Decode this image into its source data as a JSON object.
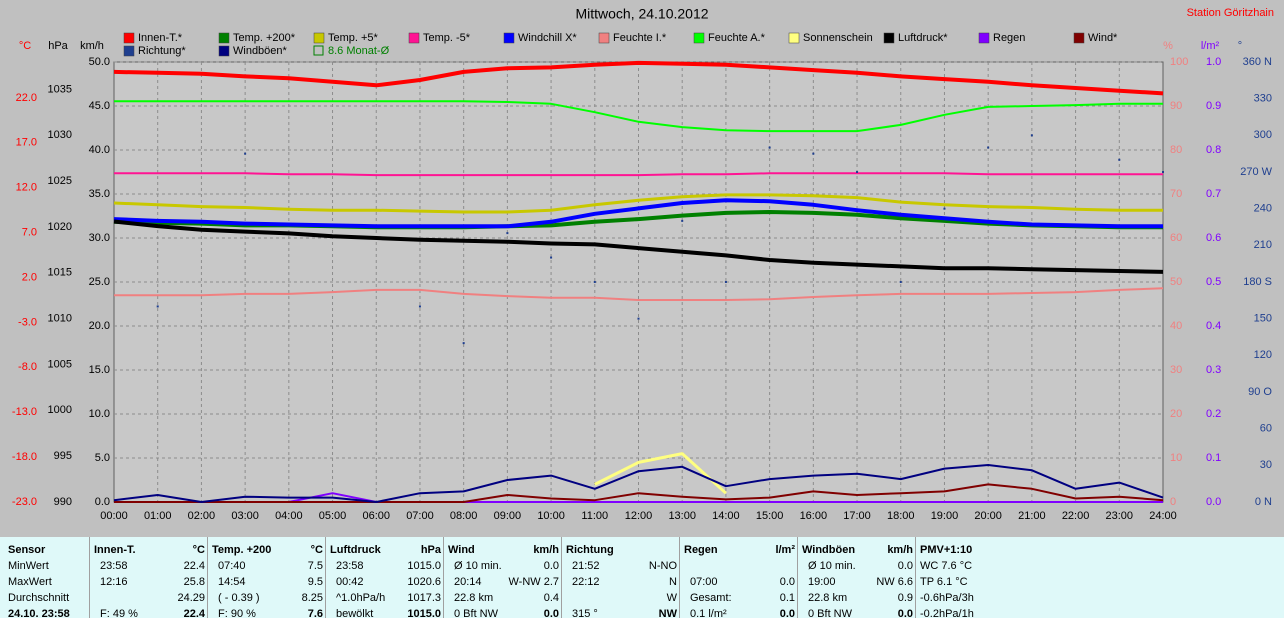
{
  "header": {
    "title": "Mittwoch, 24.10.2012",
    "station": "Station Göritzhain"
  },
  "chart_data": {
    "type": "line",
    "grid": true,
    "categories": [
      "00:00",
      "01:00",
      "02:00",
      "03:00",
      "04:00",
      "05:00",
      "06:00",
      "07:00",
      "08:00",
      "09:00",
      "10:00",
      "11:00",
      "12:00",
      "13:00",
      "14:00",
      "15:00",
      "16:00",
      "17:00",
      "18:00",
      "19:00",
      "20:00",
      "21:00",
      "22:00",
      "23:00",
      "24:00"
    ],
    "axes": [
      {
        "label": "°C",
        "color": "#ff0000",
        "lim": [
          -23,
          26
        ],
        "ticks": [
          {
            "value": 22,
            "label": "22.0"
          },
          {
            "value": 17,
            "label": "17.0"
          },
          {
            "value": 12,
            "label": "12.0"
          },
          {
            "value": 7,
            "label": "7.0"
          },
          {
            "value": 2,
            "label": "2.0"
          },
          {
            "value": -3,
            "label": "-3.0"
          },
          {
            "value": -8,
            "label": "-8.0"
          },
          {
            "value": -13,
            "label": "-13.0"
          },
          {
            "value": -18,
            "label": "-18.0"
          },
          {
            "value": -23,
            "label": "-23.0"
          }
        ]
      },
      {
        "label": "hPa",
        "color": "#000000",
        "lim": [
          990,
          1038
        ],
        "ticks": [
          990,
          995,
          1000,
          1005,
          1010,
          1015,
          1020,
          1025,
          1030,
          1035
        ]
      },
      {
        "label": "km/h",
        "color": "#000000",
        "lim": [
          0,
          50
        ],
        "ticks": [
          {
            "value": 0,
            "label": "0.0"
          },
          {
            "value": 5,
            "label": "5.0"
          },
          {
            "value": 10,
            "label": "10.0"
          },
          {
            "value": 15,
            "label": "15.0"
          },
          {
            "value": 20,
            "label": "20.0"
          },
          {
            "value": 25,
            "label": "25.0"
          },
          {
            "value": 30,
            "label": "30.0"
          },
          {
            "value": 35,
            "label": "35.0"
          },
          {
            "value": 40,
            "label": "40.0"
          },
          {
            "value": 45,
            "label": "45.0"
          },
          {
            "value": 50,
            "label": "50.0"
          }
        ]
      },
      {
        "label": "%",
        "color": "#f08080",
        "lim": [
          0,
          100
        ],
        "ticks": [
          0,
          10,
          20,
          30,
          40,
          50,
          60,
          70,
          80,
          90,
          100
        ]
      },
      {
        "label": "l/m²",
        "color": "#8000ff",
        "lim": [
          0,
          1
        ],
        "ticks": [
          {
            "value": 0,
            "label": "0.0"
          },
          0.1,
          0.2,
          0.3,
          0.4,
          0.5,
          0.6,
          0.7,
          0.8,
          0.9,
          {
            "value": 1,
            "label": "1.0"
          }
        ]
      },
      {
        "label": "°",
        "color": "#1f3f8f",
        "lim": [
          0,
          360
        ],
        "ticks": [
          {
            "value": 0,
            "label": "0 N"
          },
          30,
          60,
          {
            "value": 90,
            "label": "90 O"
          },
          120,
          150,
          {
            "value": 180,
            "label": "180 S"
          },
          210,
          240,
          {
            "value": 270,
            "label": "270 W"
          },
          300,
          330,
          {
            "value": 360,
            "label": "360 N"
          }
        ]
      }
    ],
    "series": [
      {
        "name": "Innen-T.*",
        "color": "#ff0000",
        "axis": 0,
        "style": "line",
        "width": 4,
        "values": [
          24.9,
          24.8,
          24.7,
          24.4,
          24.2,
          23.8,
          23.4,
          24.0,
          24.9,
          25.3,
          25.4,
          25.7,
          25.9,
          25.8,
          25.7,
          25.4,
          25.1,
          24.8,
          24.4,
          24.1,
          23.8,
          23.4,
          23.1,
          22.8,
          22.5
        ]
      },
      {
        "name": "Temp. +200*",
        "color": "#008000",
        "axis": 0,
        "style": "line",
        "width": 4,
        "values": [
          8.2,
          8.1,
          8.0,
          7.8,
          7.8,
          7.7,
          7.6,
          7.6,
          7.6,
          7.7,
          7.8,
          8.2,
          8.5,
          8.9,
          9.2,
          9.3,
          9.2,
          9.0,
          8.6,
          8.3,
          8.0,
          7.8,
          7.7,
          7.6,
          7.6
        ]
      },
      {
        "name": "Temp. +5*",
        "color": "#c8c800",
        "axis": 0,
        "style": "line",
        "width": 3,
        "values": [
          10.3,
          10.1,
          9.9,
          9.8,
          9.6,
          9.5,
          9.5,
          9.4,
          9.3,
          9.3,
          9.5,
          10.1,
          10.6,
          11.0,
          11.2,
          11.2,
          11.1,
          10.9,
          10.4,
          10.1,
          9.9,
          9.8,
          9.6,
          9.5,
          9.5
        ]
      },
      {
        "name": "Temp. -5*",
        "color": "#ff1493",
        "axis": 0,
        "style": "line",
        "width": 2,
        "values": [
          13.6,
          13.6,
          13.6,
          13.6,
          13.5,
          13.5,
          13.4,
          13.4,
          13.4,
          13.4,
          13.4,
          13.4,
          13.4,
          13.5,
          13.5,
          13.6,
          13.6,
          13.6,
          13.6,
          13.6,
          13.5,
          13.5,
          13.5,
          13.5,
          13.5
        ]
      },
      {
        "name": "Windchill X*",
        "color": "#0000ff",
        "axis": 0,
        "style": "line",
        "width": 4,
        "values": [
          8.5,
          8.3,
          8.2,
          8.0,
          7.9,
          7.8,
          7.7,
          7.7,
          7.7,
          7.7,
          8.2,
          9.1,
          9.7,
          10.3,
          10.6,
          10.5,
          10.1,
          9.5,
          9.0,
          8.6,
          8.2,
          7.9,
          7.8,
          7.7,
          7.7
        ]
      },
      {
        "name": "Feuchte I.*",
        "color": "#f08080",
        "axis": 3,
        "style": "line",
        "width": 2,
        "values": [
          47.0,
          47.0,
          47.0,
          47.3,
          47.3,
          47.7,
          48.2,
          48.2,
          47.3,
          46.8,
          46.4,
          46.4,
          45.9,
          45.9,
          45.9,
          46.1,
          46.6,
          47.0,
          47.3,
          47.3,
          47.3,
          47.5,
          47.7,
          48.2,
          48.6
        ]
      },
      {
        "name": "Feuchte A.*",
        "color": "#00ff00",
        "axis": 3,
        "style": "line",
        "width": 2,
        "values": [
          91.1,
          91.1,
          91.1,
          91.1,
          91.1,
          91.1,
          91.1,
          91.1,
          91.1,
          90.9,
          90.5,
          88.6,
          86.4,
          85.2,
          84.5,
          84.3,
          84.3,
          84.3,
          85.7,
          88.0,
          89.8,
          90.0,
          90.2,
          90.5,
          90.5
        ]
      },
      {
        "name": "Sonnenschein",
        "color": "#ffff80",
        "axis": 2,
        "style": "line",
        "width": 3,
        "values": [
          null,
          null,
          null,
          null,
          null,
          null,
          null,
          null,
          null,
          null,
          null,
          2,
          4.5,
          5.5,
          1,
          null,
          null,
          null,
          null,
          null,
          null,
          null,
          null,
          null,
          null
        ]
      },
      {
        "name": "Luftdruck*",
        "color": "#000000",
        "axis": 1,
        "style": "line",
        "width": 4,
        "values": [
          1020.6,
          1020.1,
          1019.7,
          1019.5,
          1019.3,
          1019.0,
          1018.8,
          1018.6,
          1018.5,
          1018.4,
          1018.2,
          1018.1,
          1017.7,
          1017.3,
          1016.9,
          1016.4,
          1016.1,
          1015.9,
          1015.7,
          1015.5,
          1015.5,
          1015.4,
          1015.3,
          1015.2,
          1015.1
        ]
      },
      {
        "name": "Regen",
        "color": "#8000ff",
        "axis": 4,
        "style": "line",
        "width": 2,
        "values": [
          0,
          0,
          0,
          0,
          0,
          0.02,
          0,
          0,
          0,
          0,
          0,
          0,
          0,
          0,
          0,
          0,
          0,
          0,
          0,
          0,
          0,
          0,
          0,
          0,
          0
        ]
      },
      {
        "name": "Wind*",
        "color": "#800000",
        "axis": 2,
        "style": "line",
        "width": 2,
        "values": [
          0,
          0,
          0,
          0,
          0,
          0,
          0,
          0,
          0,
          0.8,
          0.4,
          0.2,
          1.0,
          0.6,
          0.3,
          0.5,
          1.2,
          0.8,
          1.0,
          1.2,
          2.0,
          1.5,
          0.4,
          0.6,
          0.2
        ]
      },
      {
        "name": "Richtung*",
        "color": "#1f3f8f",
        "axis": 5,
        "style": "dots",
        "width": 2,
        "values": [
          null,
          160,
          null,
          285,
          null,
          null,
          null,
          160,
          130,
          220,
          200,
          180,
          150,
          230,
          180,
          290,
          285,
          270,
          180,
          240,
          290,
          300,
          null,
          280,
          270
        ]
      },
      {
        "name": "Windböen*",
        "color": "#000080",
        "axis": 2,
        "style": "line",
        "width": 2,
        "values": [
          0.2,
          0.8,
          0,
          0.6,
          0.5,
          0.5,
          0,
          1.0,
          1.2,
          2.5,
          3.0,
          1.5,
          3.5,
          4.0,
          1.8,
          2.6,
          3.0,
          3.2,
          2.6,
          3.8,
          4.2,
          3.6,
          1.5,
          2.2,
          0.5
        ]
      }
    ],
    "legend_extra": {
      "label": "8.6 Monat-Ø",
      "color": "#008000"
    }
  },
  "table": {
    "sensor": [
      "Sensor",
      "MinWert",
      "MaxWert",
      "Durchschnitt",
      "24.10. 23:58"
    ],
    "columns": [
      {
        "name": "Innen-T.",
        "unit": "°C",
        "rows": [
          [
            "23:58",
            "22.4"
          ],
          [
            "12:16",
            "25.8"
          ],
          [
            null,
            "24.29"
          ],
          [
            "F: 49 %",
            "22.4"
          ]
        ]
      },
      {
        "name": "Temp. +200",
        "unit": "°C",
        "rows": [
          [
            "07:40",
            "7.5"
          ],
          [
            "14:54",
            "9.5"
          ],
          [
            "( - 0.39 )",
            "8.25"
          ],
          [
            "F: 90 %",
            "7.6"
          ]
        ]
      },
      {
        "name": "Luftdruck",
        "unit": "hPa",
        "rows": [
          [
            "23:58",
            "1015.0"
          ],
          [
            "00:42",
            "1020.6"
          ],
          [
            "^1.0hPa/h",
            "1017.3"
          ],
          [
            "bewölkt",
            "1015.0"
          ]
        ]
      },
      {
        "name": "Wind",
        "unit": "km/h",
        "rows": [
          [
            "Ø 10 min.",
            "0.0"
          ],
          [
            "20:14",
            "W-NW 2.7"
          ],
          [
            "22.8 km",
            "0.4"
          ],
          [
            "0 Bft NW",
            "0.0"
          ]
        ]
      },
      {
        "name": "Richtung",
        "unit": null,
        "rows": [
          [
            "21:52",
            "N-NO"
          ],
          [
            "22:12",
            "N"
          ],
          [
            null,
            "W"
          ],
          [
            "315 °",
            "NW"
          ]
        ]
      },
      {
        "name": "Regen",
        "unit": "l/m²",
        "rows": [
          [
            null,
            null
          ],
          [
            "07:00",
            "0.0"
          ],
          [
            "Gesamt:",
            "0.1"
          ],
          [
            "0.1 l/m²",
            "0.0"
          ]
        ]
      },
      {
        "name": "Windböen",
        "unit": "km/h",
        "rows": [
          [
            "Ø 10 min.",
            "0.0"
          ],
          [
            "19:00",
            "NW 6.6"
          ],
          [
            "22.8 km",
            "0.9"
          ],
          [
            "0 Bft NW",
            "0.0"
          ]
        ]
      },
      {
        "name": "PMV+1:10",
        "unit": null,
        "rows": [
          [
            "WC 7.6 °C"
          ],
          [
            "TP 6.1 °C"
          ],
          [
            "-0.6hPa/3h"
          ],
          [
            "-0.2hPa/1h"
          ]
        ]
      }
    ]
  }
}
